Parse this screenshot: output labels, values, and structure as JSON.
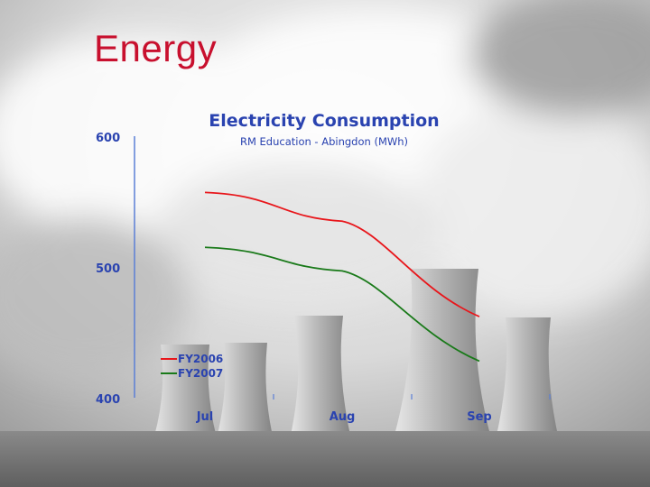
{
  "slide": {
    "title": "Energy"
  },
  "chart_data": {
    "type": "line",
    "title": "Electricity Consumption",
    "subtitle": "RM Education - Abingdon (MWh)",
    "xlabel": "",
    "ylabel": "",
    "categories": [
      "Jul",
      "Aug",
      "Sep"
    ],
    "yticks": [
      400,
      500,
      600
    ],
    "ylim": [
      400,
      600
    ],
    "grid": false,
    "legend_position": "bottom-left",
    "series": [
      {
        "name": "FY2006",
        "color": "#e8161b",
        "values": [
          557,
          535,
          462
        ]
      },
      {
        "name": "FY2007",
        "color": "#1a7a1a",
        "values": [
          515,
          497,
          428
        ]
      }
    ],
    "axis_color": "#5b7fd6",
    "text_color": "#2a43b0"
  }
}
